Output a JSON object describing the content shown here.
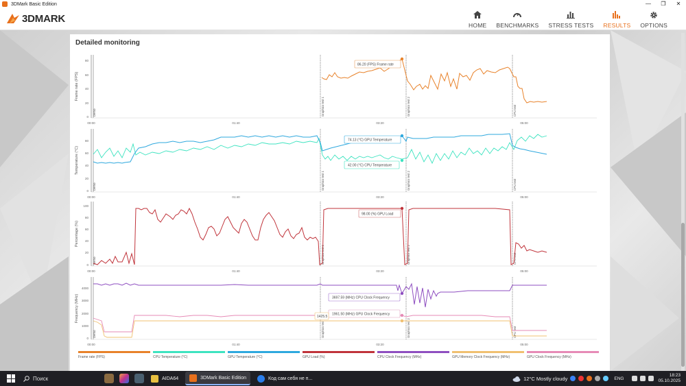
{
  "window": {
    "title": "3DMark Basic Edition",
    "controls": [
      "—",
      "❐",
      "✕"
    ]
  },
  "brand": {
    "logo_text": "3DMARK"
  },
  "nav": [
    {
      "label": "HOME",
      "icon": "home-icon",
      "active": false
    },
    {
      "label": "BENCHMARKS",
      "icon": "gauge-icon",
      "active": false
    },
    {
      "label": "STRESS TESTS",
      "icon": "bar-chart-icon",
      "active": false
    },
    {
      "label": "RESULTS",
      "icon": "results-icon",
      "active": true
    },
    {
      "label": "OPTIONS",
      "icon": "gear-icon",
      "active": false
    }
  ],
  "colors": {
    "accent": "#e8701c",
    "frame_rate": "#e8822a",
    "cpu_temp": "#3de3c0",
    "gpu_temp": "#2ea8de",
    "gpu_load": "#c0333a",
    "cpu_clock": "#8e4ec0",
    "gpu_mem_clock": "#f0c070",
    "gpu_clock": "#e68ab6"
  },
  "monitoring": {
    "title": "Detailed monitoring",
    "x_ticks": [
      "00:00",
      "01:40",
      "03:20",
      "05:00"
    ],
    "test_markers": [
      "Demo",
      "Graphics test 1",
      "Graphics test 2",
      "CPU test"
    ],
    "panels": [
      {
        "id": "fps",
        "ylabel": "Frame rate (FPS)",
        "ylim": [
          0,
          90
        ],
        "y_ticks": [
          "0",
          "20",
          "40",
          "60",
          "80"
        ],
        "tooltips": [
          {
            "text": "86.20 (FPS) Frame rate"
          }
        ]
      },
      {
        "id": "temp",
        "ylabel": "Temperature (°C)",
        "ylim": [
          0,
          100
        ],
        "y_ticks": [
          "0",
          "20",
          "40",
          "60",
          "80"
        ],
        "tooltips": [
          {
            "text": "74.13 (°C) GPU Temperature"
          },
          {
            "text": "42.00 (°C) CPU Temperature"
          }
        ]
      },
      {
        "id": "load",
        "ylabel": "Percentage (%)",
        "ylim": [
          0,
          105
        ],
        "y_ticks": [
          "0",
          "20",
          "40",
          "60",
          "80",
          "100"
        ],
        "tooltips": [
          {
            "text": "98.00 (%) GPU Load"
          }
        ]
      },
      {
        "id": "freq",
        "ylabel": "Frequency (MHz)",
        "ylim": [
          0,
          5000
        ],
        "y_ticks": [
          "0",
          "1000",
          "2000",
          "3000",
          "4000"
        ],
        "tooltips": [
          {
            "text": "3697.59 (MHz) CPU Clock Frequency"
          },
          {
            "text": "1961.50 (MHz) GPU Clock Frequency"
          },
          {
            "text": "1425.5"
          }
        ]
      }
    ],
    "legend": [
      {
        "label": "Frame rate (FPS)",
        "color": "#e8822a"
      },
      {
        "label": "CPU Temperature (°C)",
        "color": "#3de3c0"
      },
      {
        "label": "GPU Temperature (°C)",
        "color": "#2ea8de"
      },
      {
        "label": "GPU Load (%)",
        "color": "#c0333a"
      },
      {
        "label": "CPU Clock Frequency (MHz)",
        "color": "#8e4ec0"
      },
      {
        "label": "GPU Memory Clock Frequency (MHz)",
        "color": "#f0c070"
      },
      {
        "label": "GPU Clock Frequency (MHz)",
        "color": "#e68ab6"
      }
    ]
  },
  "chart_data": [
    {
      "type": "line",
      "ylabel": "Frame rate (FPS)",
      "ylim": [
        0,
        90
      ],
      "x_unit": "seconds",
      "series": [
        {
          "name": "Frame rate (FPS)",
          "points": [
            [
              200,
              60
            ],
            [
              205,
              57
            ],
            [
              210,
              58
            ],
            [
              215,
              65
            ],
            [
              220,
              63
            ],
            [
              225,
              70
            ],
            [
              230,
              64
            ],
            [
              235,
              62
            ],
            [
              240,
              63
            ],
            [
              245,
              62
            ],
            [
              250,
              65
            ],
            [
              255,
              68
            ],
            [
              260,
              70
            ],
            [
              265,
              71
            ],
            [
              270,
              70
            ],
            [
              275,
              72
            ],
            [
              280,
              73
            ],
            [
              285,
              75
            ],
            [
              290,
              72
            ],
            [
              295,
              75
            ],
            [
              300,
              86
            ],
            [
              275,
              55
            ],
            [
              280,
              44
            ],
            [
              285,
              50
            ],
            [
              290,
              54
            ],
            [
              295,
              48
            ],
            [
              300,
              56
            ],
            [
              305,
              52
            ],
            [
              310,
              70
            ],
            [
              315,
              60
            ],
            [
              320,
              50
            ],
            [
              325,
              71
            ],
            [
              330,
              62
            ],
            [
              335,
              74
            ],
            [
              340,
              58
            ],
            [
              345,
              65
            ],
            [
              350,
              50
            ],
            [
              355,
              72
            ],
            [
              360,
              68
            ],
            [
              365,
              70
            ],
            [
              370,
              63
            ],
            [
              375,
              72
            ],
            [
              380,
              76
            ],
            [
              385,
              75
            ],
            [
              350,
              68
            ],
            [
              352,
              55
            ],
            [
              355,
              52
            ],
            [
              358,
              38
            ],
            [
              360,
              30
            ],
            [
              365,
              28
            ],
            [
              370,
              26
            ],
            [
              375,
              27
            ],
            [
              380,
              28
            ],
            [
              385,
              26
            ]
          ]
        }
      ]
    },
    {
      "type": "line",
      "ylabel": "Temperature (°C)",
      "ylim": [
        0,
        100
      ],
      "series": [
        {
          "name": "GPU Temperature (°C)",
          "summary": "rises 38→74 °C over the run"
        },
        {
          "name": "CPU Temperature (°C)",
          "summary": "oscillates 40–55 °C, peaks ~70 °C in CPU test"
        }
      ]
    },
    {
      "type": "line",
      "ylabel": "Percentage (%)",
      "ylim": [
        0,
        105
      ],
      "series": [
        {
          "name": "GPU Load (%)",
          "summary": "≈98–100% during graphics tests"
        }
      ]
    },
    {
      "type": "line",
      "ylabel": "Frequency (MHz)",
      "ylim": [
        0,
        5000
      ],
      "series": [
        {
          "name": "CPU Clock Frequency (MHz)",
          "summary": "≈4400 MHz, dips to ~2400 in Graphics test 2"
        },
        {
          "name": "GPU Clock Frequency (MHz)",
          "summary": "≈1960 MHz"
        },
        {
          "name": "GPU Memory Clock Frequency (MHz)",
          "summary": "≈1425 MHz"
        }
      ]
    }
  ],
  "taskbar": {
    "search_label": "Поиск",
    "apps": [
      {
        "label": "AIDA64",
        "color": "#e8c040",
        "active": false
      },
      {
        "label": "3DMark Basic Edition",
        "color": "#e8701c",
        "active": true
      },
      {
        "label": "Код сам себя не п...",
        "color": "#2b7de9",
        "active": false
      }
    ],
    "weather": "12°C  Mostly cloudy",
    "lang": "ENG",
    "time": "18:23",
    "date": "05.10.2025"
  }
}
